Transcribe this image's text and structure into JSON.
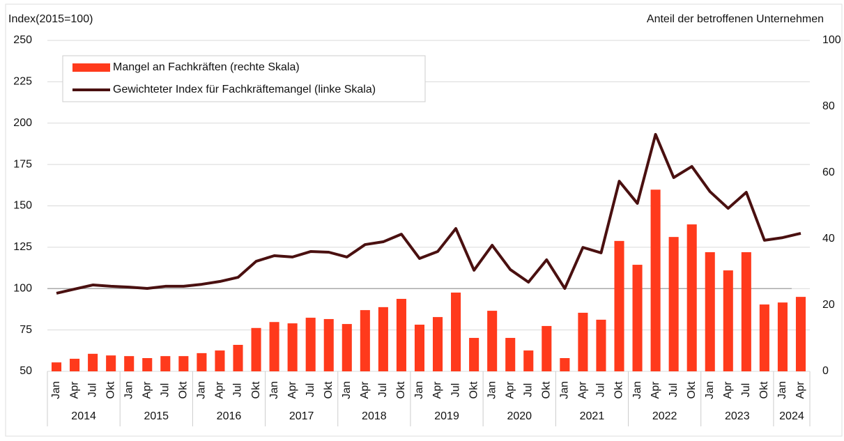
{
  "chart_data": {
    "type": "bar_line",
    "y_label": "Index(2015=100)",
    "y2_label": "Anteil der betroffenen Unternehmen",
    "categories": [
      "Jan",
      "Apr",
      "Jul",
      "Okt",
      "Jan",
      "Apr",
      "Jul",
      "Okt",
      "Jan",
      "Apr",
      "Jul",
      "Okt",
      "Jan",
      "Apr",
      "Jul",
      "Okt",
      "Jan",
      "Apr",
      "Jul",
      "Okt",
      "Jan",
      "Apr",
      "Jul",
      "Okt",
      "Jan",
      "Apr",
      "Jul",
      "Okt",
      "Jan",
      "Apr",
      "Jul",
      "Okt",
      "Jan",
      "Apr",
      "Jul",
      "Okt",
      "Jan",
      "Apr",
      "Jul",
      "Okt",
      "Jan",
      "Apr"
    ],
    "x_groups": [
      {
        "label": "2014",
        "span": 4
      },
      {
        "label": "2015",
        "span": 4
      },
      {
        "label": "2016",
        "span": 4
      },
      {
        "label": "2017",
        "span": 4
      },
      {
        "label": "2018",
        "span": 4
      },
      {
        "label": "2019",
        "span": 4
      },
      {
        "label": "2020",
        "span": 4
      },
      {
        "label": "2021",
        "span": 4
      },
      {
        "label": "2022",
        "span": 4
      },
      {
        "label": "2023",
        "span": 4
      },
      {
        "label": "2024",
        "span": 2
      }
    ],
    "series": [
      {
        "name": "Mangel an Fachkräften (rechte Skala)",
        "type": "bar",
        "axis": "y2",
        "color": "#ff3a1c",
        "values": [
          2.7,
          3.8,
          5.3,
          4.8,
          4.6,
          4.0,
          4.6,
          4.6,
          5.5,
          6.3,
          8.0,
          13.1,
          14.9,
          14.5,
          16.2,
          15.8,
          14.3,
          18.5,
          19.4,
          21.9,
          14.1,
          16.4,
          23.8,
          10.1,
          18.3,
          10.1,
          6.3,
          13.7,
          4.0,
          17.7,
          15.6,
          39.4,
          32.2,
          54.9,
          40.6,
          44.4,
          36.0,
          30.5,
          36.0,
          20.2,
          20.8,
          22.5
        ]
      },
      {
        "name": "Gewichteter Index für Fachkräftemangel (linke Skala)",
        "type": "line",
        "axis": "y",
        "color": "#4a1010",
        "values": [
          97.2,
          99.7,
          102.2,
          101.4,
          100.9,
          100.1,
          101.4,
          101.4,
          102.6,
          104.3,
          106.8,
          116.5,
          119.9,
          119.1,
          122.4,
          122.0,
          119.1,
          126.6,
          128.3,
          132.9,
          118.2,
          122.4,
          136.3,
          111.1,
          126.2,
          111.5,
          103.9,
          117.4,
          100.1,
          124.9,
          121.6,
          164.9,
          151.5,
          193.2,
          167.1,
          173.8,
          158.6,
          148.5,
          158.2,
          129.2,
          130.8,
          133.4
        ]
      }
    ],
    "ylim": [
      50,
      250
    ],
    "yticks": [
      50,
      75,
      100,
      125,
      150,
      175,
      200,
      225,
      250
    ],
    "y2lim": [
      0,
      100
    ],
    "y2ticks": [
      0,
      20,
      40,
      60,
      80,
      100
    ],
    "reference_line": 100,
    "grid": true,
    "legend": "upper left"
  }
}
